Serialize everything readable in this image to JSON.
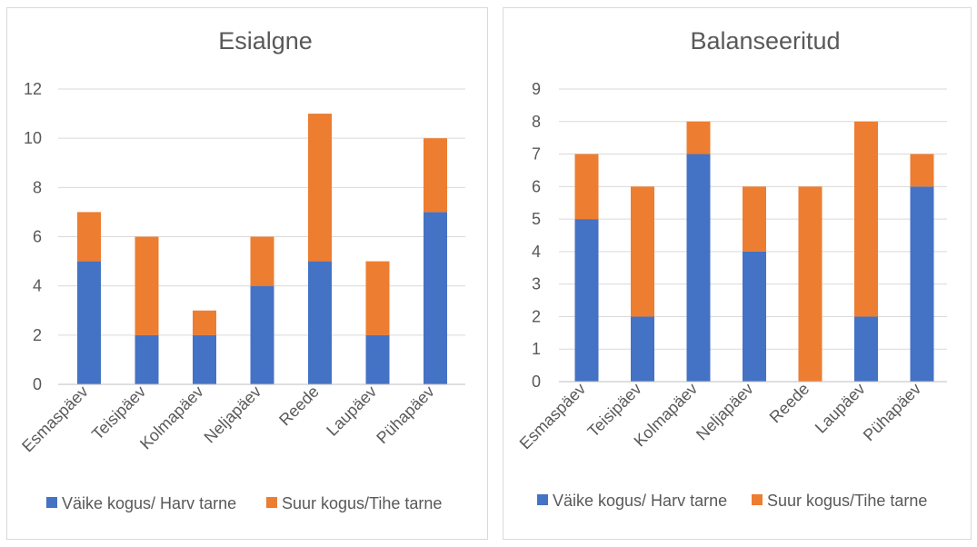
{
  "chart_data": [
    {
      "type": "bar",
      "stacked": true,
      "title": "Esialgne",
      "categories": [
        "Esmaspäev",
        "Teisipäev",
        "Kolmapäev",
        "Neljapäev",
        "Reede",
        "Laupäev",
        "Pühapäev"
      ],
      "series": [
        {
          "name": "Väike kogus/ Harv tarne",
          "color": "#4472c4",
          "values": [
            5,
            2,
            2,
            4,
            5,
            2,
            7
          ]
        },
        {
          "name": "Suur kogus/Tihe tarne",
          "color": "#ed7d31",
          "values": [
            2,
            4,
            1,
            2,
            6,
            3,
            3
          ]
        }
      ],
      "ylim": [
        0,
        12
      ],
      "yticks": [
        "0",
        "2",
        "4",
        "6",
        "8",
        "10",
        "12"
      ],
      "grid": true,
      "legend": "bottom"
    },
    {
      "type": "bar",
      "stacked": true,
      "title": "Balanseeritud",
      "categories": [
        "Esmaspäev",
        "Teisipäev",
        "Kolmapäev",
        "Neljapäev",
        "Reede",
        "Laupäev",
        "Pühapäev"
      ],
      "series": [
        {
          "name": "Väike kogus/ Harv tarne",
          "color": "#4472c4",
          "values": [
            5,
            2,
            7,
            4,
            0,
            2,
            6
          ]
        },
        {
          "name": "Suur kogus/Tihe tarne",
          "color": "#ed7d31",
          "values": [
            2,
            4,
            1,
            2,
            6,
            6,
            1
          ]
        }
      ],
      "ylim": [
        0,
        9
      ],
      "yticks": [
        "0",
        "1",
        "2",
        "3",
        "4",
        "5",
        "6",
        "7",
        "8",
        "9"
      ],
      "grid": true,
      "legend": "bottom"
    }
  ]
}
